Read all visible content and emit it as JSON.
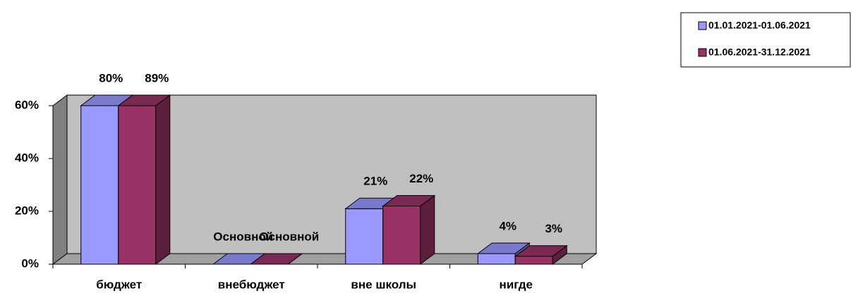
{
  "chart_data": {
    "type": "bar3d",
    "categories": [
      "бюджет",
      "внебюджет",
      "вне школы",
      "нигде"
    ],
    "series": [
      {
        "name": "01.01.2021-01.06.2021",
        "color": "#9999ff",
        "values": [
          80,
          0,
          21,
          4
        ],
        "value_labels": [
          "80%",
          "Основной",
          "21%",
          "4%"
        ]
      },
      {
        "name": "01.06.2021-31.12.2021",
        "color": "#993366",
        "values": [
          89,
          0,
          22,
          3
        ],
        "value_labels": [
          "89%",
          "Основной",
          "22%",
          "3%"
        ]
      }
    ],
    "ylim": [
      0,
      60
    ],
    "yticks": [
      {
        "value": 0,
        "label": "0%"
      },
      {
        "value": 20,
        "label": "20%"
      },
      {
        "value": 40,
        "label": "40%"
      },
      {
        "value": 60,
        "label": "60%"
      }
    ],
    "legend": "top-right"
  }
}
